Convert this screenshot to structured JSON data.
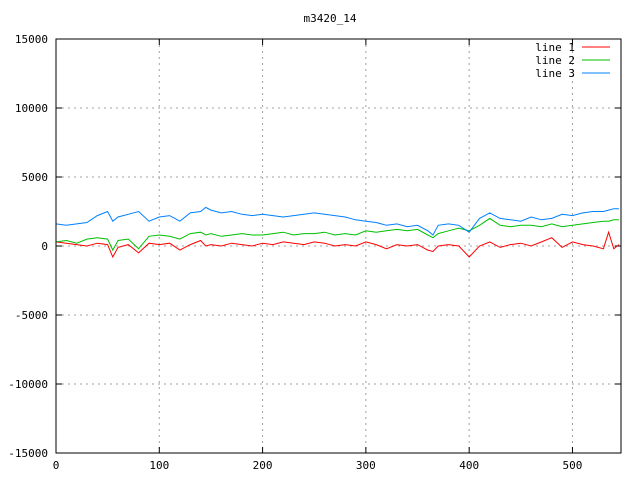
{
  "chart_data": {
    "type": "line",
    "title": "m3420_14",
    "xlabel": "",
    "ylabel": "",
    "xlim": [
      0,
      547
    ],
    "ylim": [
      -15000,
      15000
    ],
    "xticks": [
      0,
      100,
      200,
      300,
      400,
      500
    ],
    "yticks": [
      -15000,
      -10000,
      -5000,
      0,
      5000,
      10000,
      15000
    ],
    "grid": true,
    "legend_position": "top-right",
    "x": [
      0,
      10,
      20,
      30,
      40,
      50,
      55,
      60,
      70,
      80,
      90,
      100,
      110,
      120,
      130,
      140,
      145,
      150,
      160,
      170,
      180,
      190,
      200,
      210,
      220,
      230,
      240,
      250,
      260,
      270,
      280,
      290,
      300,
      310,
      320,
      330,
      340,
      350,
      360,
      365,
      370,
      380,
      390,
      400,
      410,
      420,
      430,
      440,
      450,
      460,
      470,
      480,
      490,
      500,
      510,
      520,
      530,
      535,
      540,
      545
    ],
    "series": [
      {
        "name": "line 1",
        "color": "#ff0000",
        "values": [
          300,
          200,
          100,
          0,
          200,
          100,
          -800,
          -100,
          100,
          -500,
          200,
          100,
          200,
          -300,
          100,
          400,
          0,
          100,
          0,
          200,
          100,
          0,
          200,
          100,
          300,
          200,
          100,
          300,
          200,
          0,
          100,
          0,
          300,
          100,
          -200,
          100,
          0,
          100,
          -300,
          -400,
          0,
          100,
          0,
          -800,
          0,
          300,
          -100,
          100,
          200,
          0,
          300,
          600,
          -100,
          300,
          100,
          0,
          -200,
          1000,
          -200,
          100
        ]
      },
      {
        "name": "line 2",
        "color": "#00c000",
        "values": [
          300,
          400,
          200,
          500,
          600,
          500,
          -300,
          400,
          500,
          -200,
          700,
          800,
          700,
          500,
          900,
          1000,
          800,
          900,
          700,
          800,
          900,
          800,
          800,
          900,
          1000,
          800,
          900,
          900,
          1000,
          800,
          900,
          800,
          1100,
          1000,
          1100,
          1200,
          1100,
          1200,
          800,
          600,
          900,
          1100,
          1300,
          1100,
          1500,
          2000,
          1500,
          1400,
          1500,
          1500,
          1400,
          1600,
          1400,
          1500,
          1600,
          1700,
          1800,
          1800,
          1900,
          1900
        ]
      },
      {
        "name": "line 3",
        "color": "#0080ff",
        "values": [
          1600,
          1500,
          1600,
          1700,
          2200,
          2500,
          1800,
          2100,
          2300,
          2500,
          1800,
          2100,
          2200,
          1800,
          2400,
          2500,
          2800,
          2600,
          2400,
          2500,
          2300,
          2200,
          2300,
          2200,
          2100,
          2200,
          2300,
          2400,
          2300,
          2200,
          2100,
          1900,
          1800,
          1700,
          1500,
          1600,
          1400,
          1500,
          1100,
          800,
          1500,
          1600,
          1500,
          1000,
          2000,
          2400,
          2000,
          1900,
          1800,
          2100,
          1900,
          2000,
          2300,
          2200,
          2400,
          2500,
          2500,
          2600,
          2700,
          2700
        ]
      }
    ]
  }
}
